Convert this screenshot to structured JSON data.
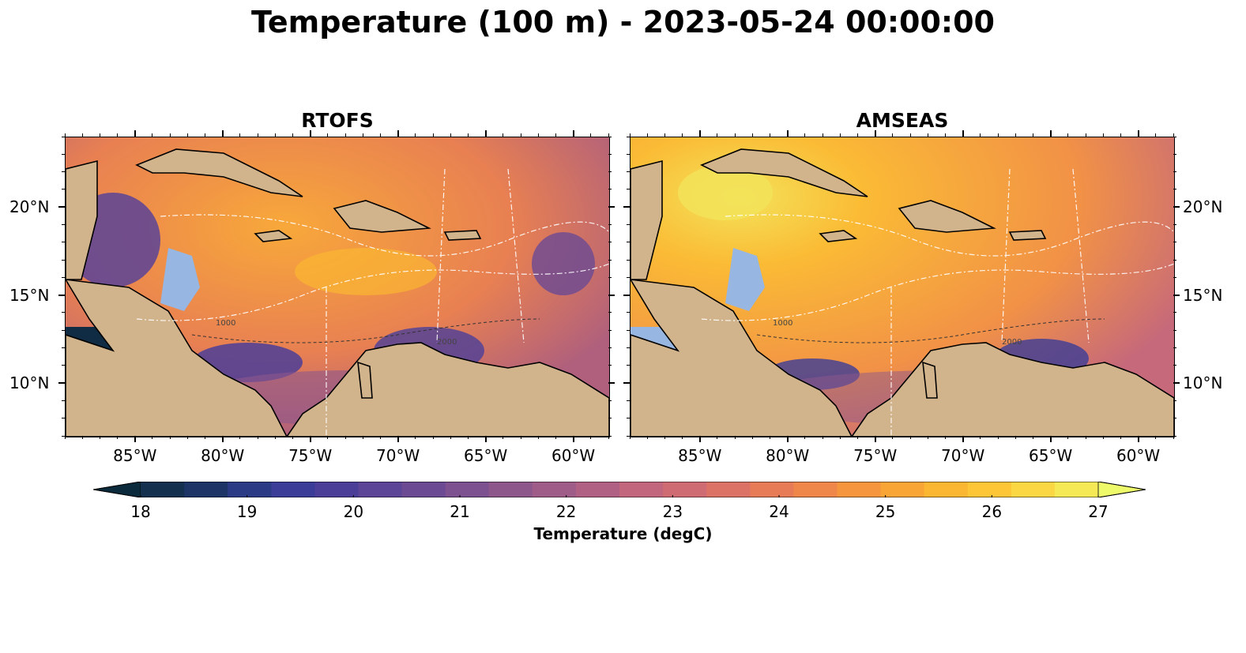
{
  "figure": {
    "title": "Temperature (100 m) - 2023-05-24 00:00:00"
  },
  "panels": [
    {
      "title": "RTOFS"
    },
    {
      "title": "AMSEAS"
    }
  ],
  "axes": {
    "x_ticks": [
      "85°W",
      "80°W",
      "75°W",
      "70°W",
      "65°W",
      "60°W"
    ],
    "y_ticks": [
      "20°N",
      "15°N",
      "10°N"
    ],
    "lon_range": [
      -89,
      -58
    ],
    "lat_range": [
      7,
      24
    ]
  },
  "contour_labels": [
    "1000",
    "2000"
  ],
  "colorbar": {
    "label": "Temperature (degC)",
    "ticks": [
      "18",
      "19",
      "20",
      "21",
      "22",
      "23",
      "24",
      "25",
      "26",
      "27"
    ],
    "range": [
      18,
      27
    ],
    "extend": "both",
    "colors": [
      "#0b2a3b",
      "#13304f",
      "#1c3566",
      "#2b3a85",
      "#3b3c97",
      "#4b3e98",
      "#5c4496",
      "#6c4a93",
      "#7d5190",
      "#8e578c",
      "#a05c88",
      "#b06183",
      "#c1667c",
      "#cf6b72",
      "#dc7266",
      "#e77b58",
      "#ef874a",
      "#f5953d",
      "#f9a535",
      "#fbb632",
      "#fcc637",
      "#fbd843",
      "#f6e956",
      "#eefa6a"
    ]
  },
  "colors": {
    "land": "#d2b48c",
    "shallow": "#97b6e1",
    "ocean_rtofs": "#ec8e4a",
    "ocean_amseas": "#f29a45"
  }
}
